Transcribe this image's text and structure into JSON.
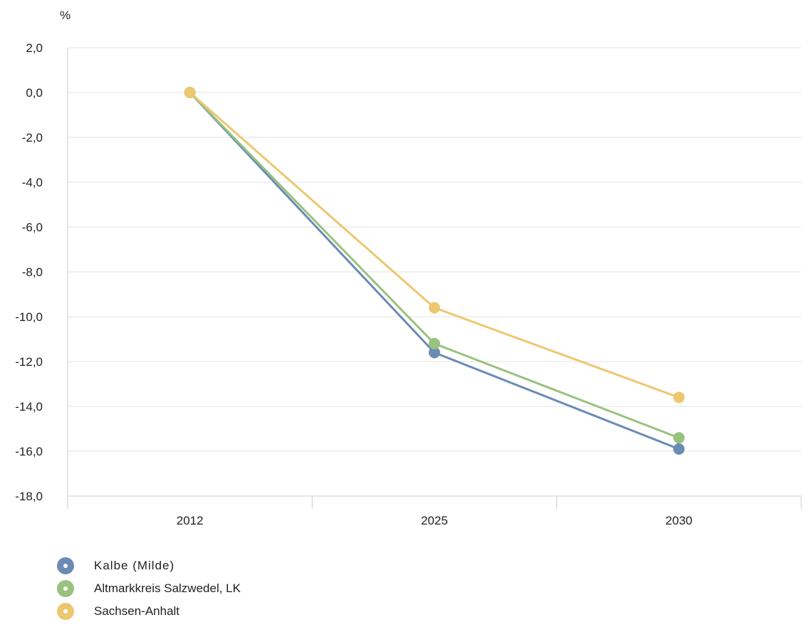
{
  "chart_data": {
    "type": "line",
    "ylabel": "%",
    "categories": [
      "2012",
      "2025",
      "2030"
    ],
    "ylim": [
      -18,
      2
    ],
    "yticks": [
      2,
      0,
      -2,
      -4,
      -6,
      -8,
      -10,
      -12,
      -14,
      -16,
      -18
    ],
    "ytick_labels": [
      "2,0",
      "0,0",
      "-2,0",
      "-4,0",
      "-6,0",
      "-8,0",
      "-10,0",
      "-12,0",
      "-14,0",
      "-16,0",
      "-18,0"
    ],
    "grid": true,
    "legend_position": "bottom-left",
    "series": [
      {
        "name": "Kalbe (Milde)",
        "color": "#6b8bb5",
        "values": [
          0.0,
          -11.6,
          -15.9
        ]
      },
      {
        "name": "Altmarkkreis Salzwedel, LK",
        "color": "#98c27e",
        "values": [
          0.0,
          -11.2,
          -15.4
        ]
      },
      {
        "name": "Sachsen-Anhalt",
        "color": "#edc76f",
        "values": [
          0.0,
          -9.6,
          -13.6
        ]
      }
    ]
  },
  "legend": {
    "items": [
      {
        "label": "Kalbe (Milde)",
        "color": "#6b8bb5"
      },
      {
        "label": "Altmarkkreis Salzwedel, LK",
        "color": "#98c27e"
      },
      {
        "label": "Sachsen-Anhalt",
        "color": "#edc76f"
      }
    ]
  }
}
